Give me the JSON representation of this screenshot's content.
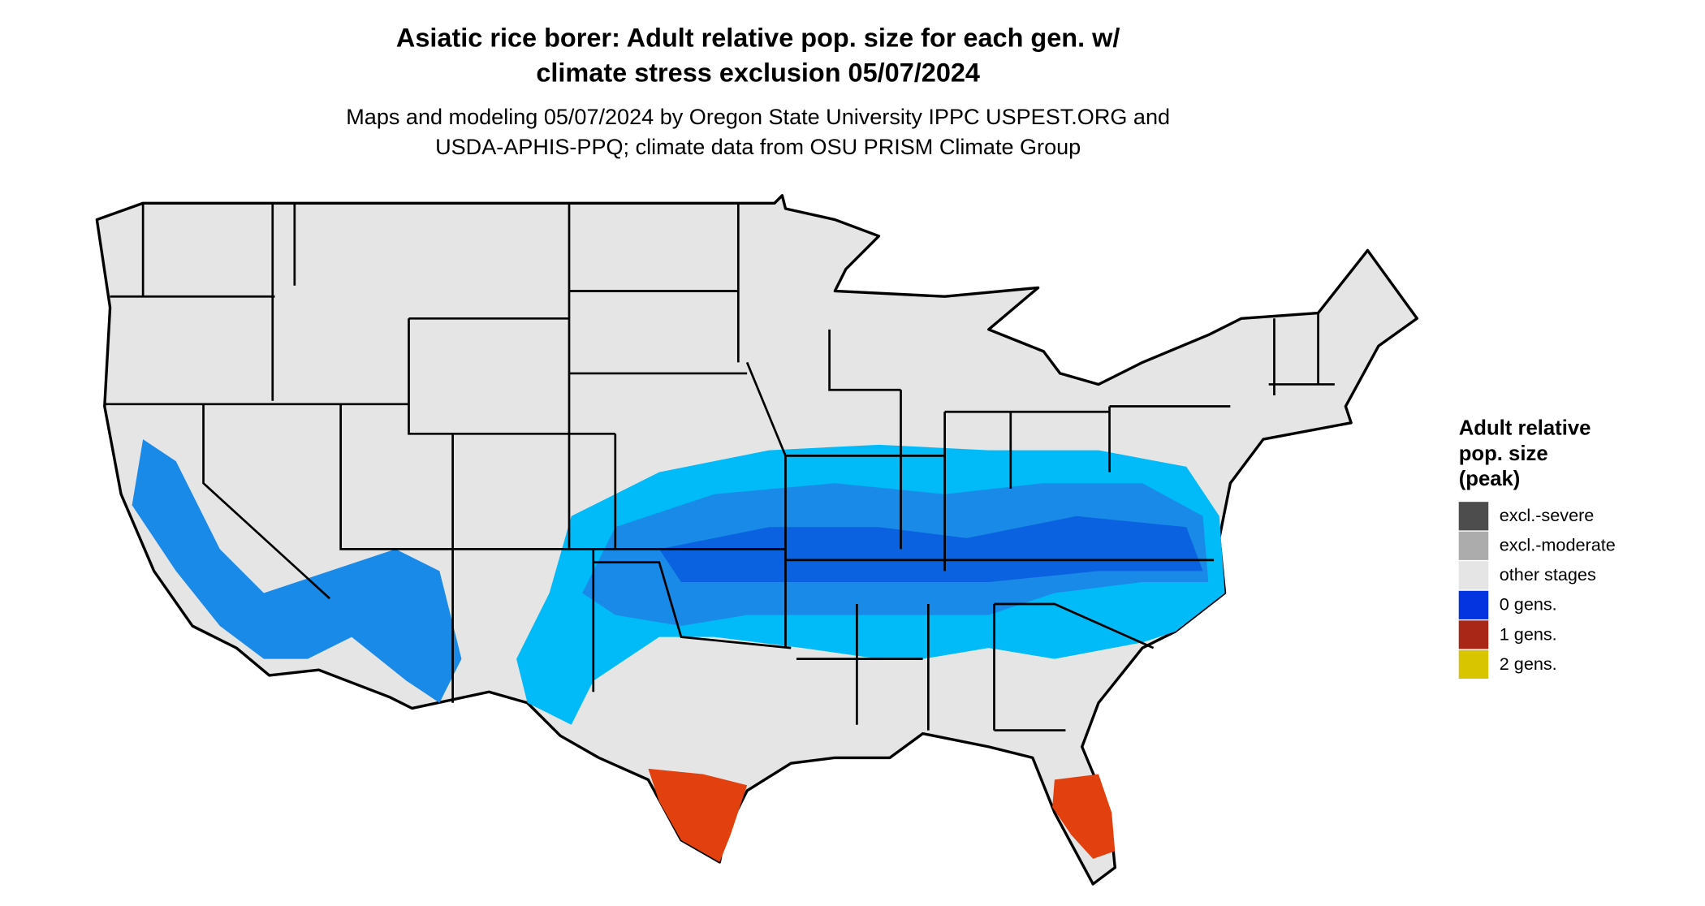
{
  "header": {
    "title": [
      "Asiatic rice borer: Adult relative pop. size for each gen. w/",
      "climate stress exclusion 05/07/2024"
    ],
    "subtitle": [
      "Maps and modeling 05/07/2024 by Oregon State University IPPC USPEST.ORG and",
      "USDA-APHIS-PPQ; climate data from OSU PRISM Climate Group"
    ]
  },
  "legend": {
    "title": [
      "Adult relative",
      "pop. size",
      "(peak)"
    ],
    "items": [
      {
        "label": "excl.-severe",
        "color": "#4d4d4d"
      },
      {
        "label": "excl.-moderate",
        "color": "#acacac"
      },
      {
        "label": "other stages",
        "color": "#e5e5e5"
      },
      {
        "label": "0 gens.",
        "color": "#0433e0"
      },
      {
        "label": "1 gens.",
        "color": "#a82716"
      },
      {
        "label": "2 gens.",
        "color": "#d9c400"
      }
    ]
  }
}
